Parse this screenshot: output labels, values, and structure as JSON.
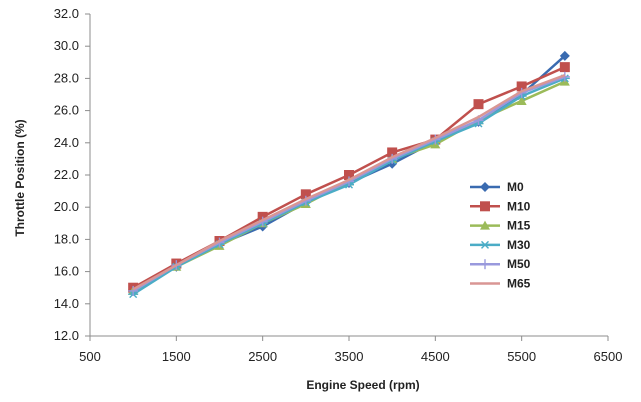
{
  "chart_data": {
    "type": "line",
    "xlabel": "Engine Speed (rpm)",
    "ylabel": "Throttle Position (%)",
    "xlim": [
      500,
      6500
    ],
    "ylim": [
      12.0,
      32.0
    ],
    "xticks": [
      "500",
      "1500",
      "2500",
      "3500",
      "4500",
      "5500",
      "6500"
    ],
    "xtick_values": [
      500,
      1500,
      2500,
      3500,
      4500,
      5500,
      6500
    ],
    "yticks": [
      "12.0",
      "14.0",
      "16.0",
      "18.0",
      "20.0",
      "22.0",
      "24.0",
      "26.0",
      "28.0",
      "30.0",
      "32.0"
    ],
    "ytick_values": [
      12,
      14,
      16,
      18,
      20,
      22,
      24,
      26,
      28,
      30,
      32
    ],
    "grid": false,
    "legend_position": "right",
    "x": [
      1000,
      1500,
      2000,
      2500,
      3000,
      3500,
      4000,
      4500,
      5000,
      5500,
      6000
    ],
    "series": [
      {
        "name": "M0",
        "color": "#3a6bb0",
        "marker": "diamond",
        "values": [
          14.9,
          16.3,
          17.7,
          18.8,
          20.3,
          21.5,
          22.7,
          24.1,
          25.3,
          27.0,
          29.4
        ]
      },
      {
        "name": "M10",
        "color": "#c0504d",
        "marker": "square",
        "values": [
          15.0,
          16.5,
          17.9,
          19.4,
          20.8,
          22.0,
          23.4,
          24.2,
          26.4,
          27.5,
          28.7
        ]
      },
      {
        "name": "M15",
        "color": "#9bbb59",
        "marker": "triangle",
        "values": [
          14.8,
          16.3,
          17.6,
          19.0,
          20.2,
          21.6,
          23.0,
          23.9,
          25.4,
          26.6,
          27.8
        ]
      },
      {
        "name": "M30",
        "color": "#4bacc6",
        "marker": "asterisk",
        "values": [
          14.6,
          16.3,
          17.7,
          19.0,
          20.3,
          21.4,
          22.9,
          24.1,
          25.2,
          26.9,
          28.0
        ]
      },
      {
        "name": "M50",
        "color": "#9999dd",
        "marker": "plus",
        "values": [
          14.8,
          16.4,
          17.8,
          19.1,
          20.4,
          21.6,
          23.0,
          24.2,
          25.4,
          27.1,
          28.1
        ]
      },
      {
        "name": "M65",
        "color": "#d99694",
        "marker": "none",
        "values": [
          14.9,
          16.4,
          17.9,
          19.2,
          20.5,
          21.7,
          23.1,
          24.3,
          25.6,
          27.2,
          28.2
        ]
      }
    ]
  }
}
